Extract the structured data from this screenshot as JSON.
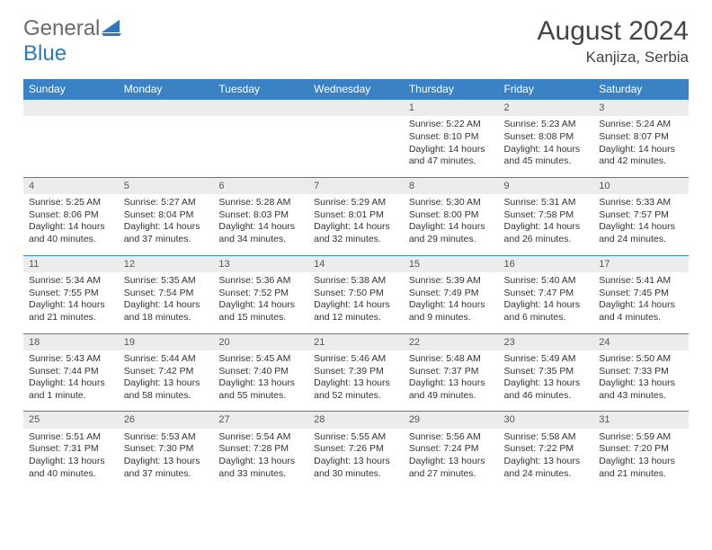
{
  "brand": {
    "general": "General",
    "blue": "Blue"
  },
  "title": "August 2024",
  "location": "Kanjiza, Serbia",
  "colors": {
    "header_bg": "#3a82c4",
    "header_fg": "#ffffff",
    "daynum_bg": "#ececec",
    "text": "#333333",
    "logo_gray": "#6b6b6b",
    "logo_blue": "#2f78bd"
  },
  "weekdays": [
    "Sunday",
    "Monday",
    "Tuesday",
    "Wednesday",
    "Thursday",
    "Friday",
    "Saturday"
  ],
  "weeks": [
    [
      null,
      null,
      null,
      null,
      {
        "n": "1",
        "sr": "Sunrise: 5:22 AM",
        "ss": "Sunset: 8:10 PM",
        "dl1": "Daylight: 14 hours",
        "dl2": "and 47 minutes."
      },
      {
        "n": "2",
        "sr": "Sunrise: 5:23 AM",
        "ss": "Sunset: 8:08 PM",
        "dl1": "Daylight: 14 hours",
        "dl2": "and 45 minutes."
      },
      {
        "n": "3",
        "sr": "Sunrise: 5:24 AM",
        "ss": "Sunset: 8:07 PM",
        "dl1": "Daylight: 14 hours",
        "dl2": "and 42 minutes."
      }
    ],
    [
      {
        "n": "4",
        "sr": "Sunrise: 5:25 AM",
        "ss": "Sunset: 8:06 PM",
        "dl1": "Daylight: 14 hours",
        "dl2": "and 40 minutes."
      },
      {
        "n": "5",
        "sr": "Sunrise: 5:27 AM",
        "ss": "Sunset: 8:04 PM",
        "dl1": "Daylight: 14 hours",
        "dl2": "and 37 minutes."
      },
      {
        "n": "6",
        "sr": "Sunrise: 5:28 AM",
        "ss": "Sunset: 8:03 PM",
        "dl1": "Daylight: 14 hours",
        "dl2": "and 34 minutes."
      },
      {
        "n": "7",
        "sr": "Sunrise: 5:29 AM",
        "ss": "Sunset: 8:01 PM",
        "dl1": "Daylight: 14 hours",
        "dl2": "and 32 minutes."
      },
      {
        "n": "8",
        "sr": "Sunrise: 5:30 AM",
        "ss": "Sunset: 8:00 PM",
        "dl1": "Daylight: 14 hours",
        "dl2": "and 29 minutes."
      },
      {
        "n": "9",
        "sr": "Sunrise: 5:31 AM",
        "ss": "Sunset: 7:58 PM",
        "dl1": "Daylight: 14 hours",
        "dl2": "and 26 minutes."
      },
      {
        "n": "10",
        "sr": "Sunrise: 5:33 AM",
        "ss": "Sunset: 7:57 PM",
        "dl1": "Daylight: 14 hours",
        "dl2": "and 24 minutes."
      }
    ],
    [
      {
        "n": "11",
        "sr": "Sunrise: 5:34 AM",
        "ss": "Sunset: 7:55 PM",
        "dl1": "Daylight: 14 hours",
        "dl2": "and 21 minutes."
      },
      {
        "n": "12",
        "sr": "Sunrise: 5:35 AM",
        "ss": "Sunset: 7:54 PM",
        "dl1": "Daylight: 14 hours",
        "dl2": "and 18 minutes."
      },
      {
        "n": "13",
        "sr": "Sunrise: 5:36 AM",
        "ss": "Sunset: 7:52 PM",
        "dl1": "Daylight: 14 hours",
        "dl2": "and 15 minutes."
      },
      {
        "n": "14",
        "sr": "Sunrise: 5:38 AM",
        "ss": "Sunset: 7:50 PM",
        "dl1": "Daylight: 14 hours",
        "dl2": "and 12 minutes."
      },
      {
        "n": "15",
        "sr": "Sunrise: 5:39 AM",
        "ss": "Sunset: 7:49 PM",
        "dl1": "Daylight: 14 hours",
        "dl2": "and 9 minutes."
      },
      {
        "n": "16",
        "sr": "Sunrise: 5:40 AM",
        "ss": "Sunset: 7:47 PM",
        "dl1": "Daylight: 14 hours",
        "dl2": "and 6 minutes."
      },
      {
        "n": "17",
        "sr": "Sunrise: 5:41 AM",
        "ss": "Sunset: 7:45 PM",
        "dl1": "Daylight: 14 hours",
        "dl2": "and 4 minutes."
      }
    ],
    [
      {
        "n": "18",
        "sr": "Sunrise: 5:43 AM",
        "ss": "Sunset: 7:44 PM",
        "dl1": "Daylight: 14 hours",
        "dl2": "and 1 minute."
      },
      {
        "n": "19",
        "sr": "Sunrise: 5:44 AM",
        "ss": "Sunset: 7:42 PM",
        "dl1": "Daylight: 13 hours",
        "dl2": "and 58 minutes."
      },
      {
        "n": "20",
        "sr": "Sunrise: 5:45 AM",
        "ss": "Sunset: 7:40 PM",
        "dl1": "Daylight: 13 hours",
        "dl2": "and 55 minutes."
      },
      {
        "n": "21",
        "sr": "Sunrise: 5:46 AM",
        "ss": "Sunset: 7:39 PM",
        "dl1": "Daylight: 13 hours",
        "dl2": "and 52 minutes."
      },
      {
        "n": "22",
        "sr": "Sunrise: 5:48 AM",
        "ss": "Sunset: 7:37 PM",
        "dl1": "Daylight: 13 hours",
        "dl2": "and 49 minutes."
      },
      {
        "n": "23",
        "sr": "Sunrise: 5:49 AM",
        "ss": "Sunset: 7:35 PM",
        "dl1": "Daylight: 13 hours",
        "dl2": "and 46 minutes."
      },
      {
        "n": "24",
        "sr": "Sunrise: 5:50 AM",
        "ss": "Sunset: 7:33 PM",
        "dl1": "Daylight: 13 hours",
        "dl2": "and 43 minutes."
      }
    ],
    [
      {
        "n": "25",
        "sr": "Sunrise: 5:51 AM",
        "ss": "Sunset: 7:31 PM",
        "dl1": "Daylight: 13 hours",
        "dl2": "and 40 minutes."
      },
      {
        "n": "26",
        "sr": "Sunrise: 5:53 AM",
        "ss": "Sunset: 7:30 PM",
        "dl1": "Daylight: 13 hours",
        "dl2": "and 37 minutes."
      },
      {
        "n": "27",
        "sr": "Sunrise: 5:54 AM",
        "ss": "Sunset: 7:28 PM",
        "dl1": "Daylight: 13 hours",
        "dl2": "and 33 minutes."
      },
      {
        "n": "28",
        "sr": "Sunrise: 5:55 AM",
        "ss": "Sunset: 7:26 PM",
        "dl1": "Daylight: 13 hours",
        "dl2": "and 30 minutes."
      },
      {
        "n": "29",
        "sr": "Sunrise: 5:56 AM",
        "ss": "Sunset: 7:24 PM",
        "dl1": "Daylight: 13 hours",
        "dl2": "and 27 minutes."
      },
      {
        "n": "30",
        "sr": "Sunrise: 5:58 AM",
        "ss": "Sunset: 7:22 PM",
        "dl1": "Daylight: 13 hours",
        "dl2": "and 24 minutes."
      },
      {
        "n": "31",
        "sr": "Sunrise: 5:59 AM",
        "ss": "Sunset: 7:20 PM",
        "dl1": "Daylight: 13 hours",
        "dl2": "and 21 minutes."
      }
    ]
  ]
}
